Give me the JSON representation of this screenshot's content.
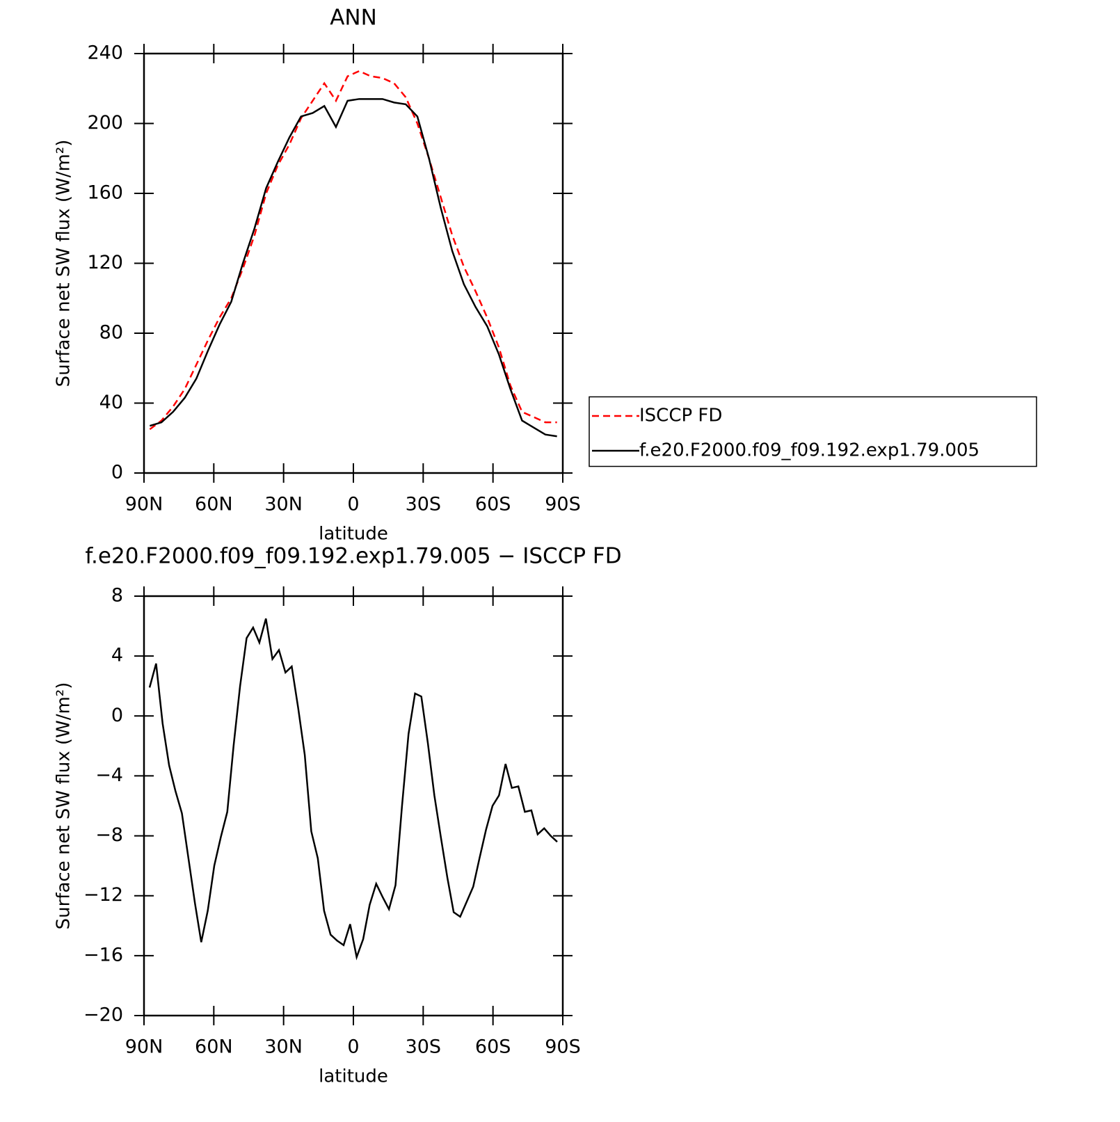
{
  "chart_data": [
    {
      "type": "line",
      "title": "ANN",
      "xlabel": "latitude",
      "ylabel": "Surface net SW flux (W/m²)",
      "xlim": [
        90,
        -90
      ],
      "xticks": [
        {
          "value": 90,
          "label": "90N"
        },
        {
          "value": 60,
          "label": "60N"
        },
        {
          "value": 30,
          "label": "30N"
        },
        0,
        {
          "value": -30,
          "label": "30S"
        },
        {
          "value": -60,
          "label": "60S"
        },
        {
          "value": -90,
          "label": "90S"
        }
      ],
      "ylim": [
        0,
        240
      ],
      "yticks": [
        0,
        40,
        80,
        120,
        160,
        200,
        240
      ],
      "legend": "right",
      "x": [
        87.5,
        82.5,
        77.5,
        72.5,
        67.5,
        62.5,
        57.5,
        52.5,
        47.5,
        42.5,
        37.5,
        32.5,
        27.5,
        22.5,
        17.5,
        12.5,
        7.5,
        2.5,
        -2.5,
        -7.5,
        -12.5,
        -17.5,
        -22.5,
        -27.5,
        -32.5,
        -37.5,
        -42.5,
        -47.5,
        -52.5,
        -57.5,
        -62.5,
        -67.5,
        -72.5,
        -77.5,
        -82.5,
        -87.5
      ],
      "series": [
        {
          "name": "ISCCP FD",
          "color": "#ff0000",
          "line_style": "dashed",
          "values": [
            25,
            30,
            38,
            48,
            62,
            76,
            89,
            100,
            117,
            136,
            160,
            176,
            188,
            203,
            213,
            223,
            213,
            227,
            230,
            227,
            226,
            223,
            215,
            200,
            180,
            158,
            136,
            118,
            104,
            89,
            72,
            50,
            35,
            32,
            29,
            29
          ]
        },
        {
          "name": "f.e20.F2000.f09_f09.192.exp1.79.005",
          "color": "#000000",
          "line_style": "solid",
          "values": [
            27,
            29,
            35,
            43,
            54,
            70,
            85,
            98,
            120,
            140,
            163,
            178,
            192,
            204,
            206,
            210,
            198,
            213,
            214,
            214,
            214,
            212,
            211,
            204,
            180,
            152,
            127,
            108,
            95,
            84,
            68,
            48,
            30,
            26,
            22,
            21
          ]
        }
      ]
    },
    {
      "type": "line",
      "title": "f.e20.F2000.f09_f09.192.exp1.79.005 − ISCCP FD",
      "xlabel": "latitude",
      "ylabel": "Surface net SW flux (W/m²)",
      "xlim": [
        90,
        -90
      ],
      "xticks": [
        {
          "value": 90,
          "label": "90N"
        },
        {
          "value": 60,
          "label": "60N"
        },
        {
          "value": 30,
          "label": "30N"
        },
        0,
        {
          "value": -30,
          "label": "30S"
        },
        {
          "value": -60,
          "label": "60S"
        },
        {
          "value": -90,
          "label": "90S"
        }
      ],
      "ylim": [
        -20,
        8
      ],
      "yticks": [
        {
          "value": -20,
          "label": "−20"
        },
        {
          "value": -16,
          "label": "−16"
        },
        {
          "value": -12,
          "label": "−12"
        },
        {
          "value": -8,
          "label": "−8"
        },
        {
          "value": -4,
          "label": "−4"
        },
        0,
        4,
        8
      ],
      "x": [
        87.6,
        84.8,
        82.0,
        79.2,
        76.5,
        73.7,
        70.9,
        68.1,
        65.4,
        62.6,
        59.8,
        57.0,
        54.2,
        51.5,
        48.7,
        45.9,
        43.1,
        40.4,
        37.6,
        34.8,
        32.0,
        29.2,
        26.5,
        23.7,
        20.9,
        18.1,
        15.3,
        12.6,
        9.8,
        7.0,
        4.2,
        1.4,
        -1.4,
        -4.2,
        -7.0,
        -9.8,
        -12.6,
        -15.3,
        -18.1,
        -20.9,
        -23.7,
        -26.5,
        -29.2,
        -32.0,
        -34.8,
        -37.6,
        -40.4,
        -43.1,
        -45.9,
        -48.7,
        -51.5,
        -54.2,
        -57.0,
        -59.8,
        -62.6,
        -65.4,
        -68.1,
        -70.9,
        -73.7,
        -76.5,
        -79.2,
        -82.0,
        -84.8,
        -87.6
      ],
      "series": [
        {
          "name": "f.e20.F2000.f09_f09.192.exp1.79.005 − ISCCP FD",
          "color": "#000000",
          "line_style": "solid",
          "values": [
            1.9,
            3.5,
            -0.5,
            -3.3,
            -5,
            -6.5,
            -9.5,
            -12.5,
            -15.1,
            -13,
            -10,
            -8.1,
            -6.4,
            -2,
            2,
            5.2,
            5.9,
            4.9,
            6.5,
            3.8,
            4.4,
            2.9,
            3.3,
            0.5,
            -2.6,
            -7.7,
            -9.5,
            -13,
            -14.6,
            -15,
            -15.3,
            -13.9,
            -16.1,
            -14.9,
            -12.6,
            -11.2,
            -12.1,
            -12.9,
            -11.3,
            -6,
            -1.2,
            1.5,
            1.3,
            -1.8,
            -5.3,
            -8.1,
            -10.8,
            -13.1,
            -13.4,
            -12.4,
            -11.4,
            -9.5,
            -7.6,
            -6,
            -5.3,
            -3.2,
            -4.8,
            -4.7,
            -6.4,
            -6.3,
            -7.9,
            -7.5,
            -8,
            -8.4
          ]
        }
      ]
    }
  ]
}
